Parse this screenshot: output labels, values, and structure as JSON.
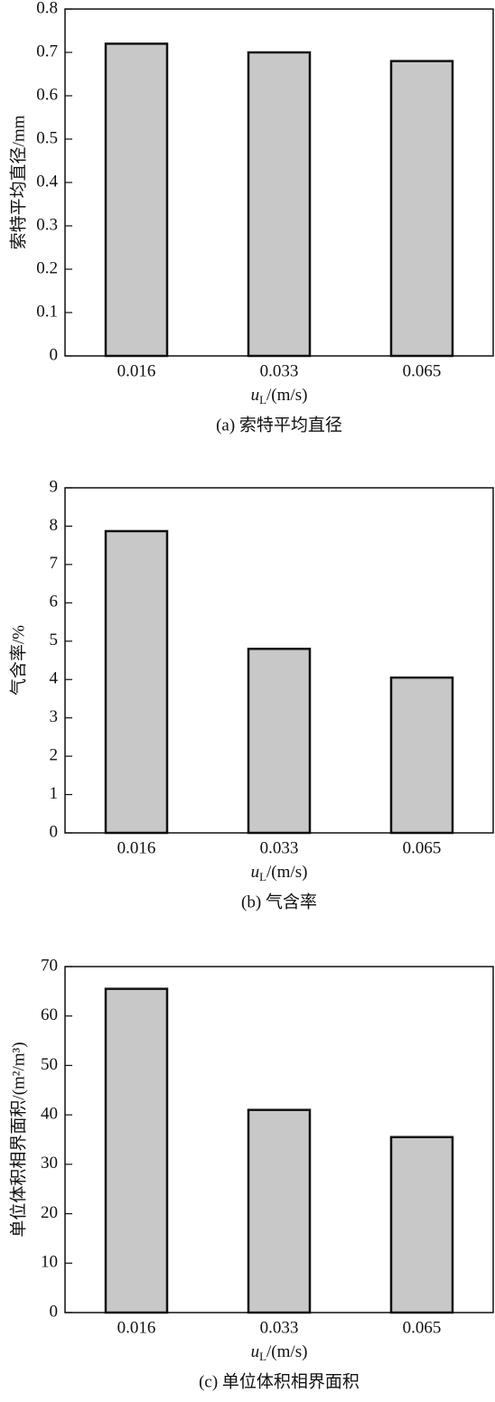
{
  "chart_data": [
    {
      "type": "bar",
      "caption": "(a) 索特平均直径",
      "y_label": "索特平均直径/mm",
      "x_label": {
        "symbol": "u",
        "subscript": "L",
        "unit": "/(m/s)"
      },
      "categories": [
        "0.016",
        "0.033",
        "0.065"
      ],
      "values": [
        0.72,
        0.7,
        0.68
      ],
      "color": "#c8c8c8",
      "ylim": [
        0,
        0.8
      ],
      "yticks": [
        0,
        0.1,
        0.2,
        0.3,
        0.4,
        0.5,
        0.6,
        0.7,
        0.8
      ]
    },
    {
      "type": "bar",
      "caption": "(b) 气含率",
      "y_label": "气含率/%",
      "x_label": {
        "symbol": "u",
        "subscript": "L",
        "unit": "/(m/s)"
      },
      "categories": [
        "0.016",
        "0.033",
        "0.065"
      ],
      "values": [
        7.87,
        4.8,
        4.05
      ],
      "color": "#c8c8c8",
      "ylim": [
        0,
        9
      ],
      "yticks": [
        0,
        1,
        2,
        3,
        4,
        5,
        6,
        7,
        8,
        9
      ]
    },
    {
      "type": "bar",
      "caption": "(c) 单位体积相界面积",
      "y_label": "单位体积相界面积/(m²/m³)",
      "x_label": {
        "symbol": "u",
        "subscript": "L",
        "unit": "/(m/s)"
      },
      "categories": [
        "0.016",
        "0.033",
        "0.065"
      ],
      "values": [
        65.5,
        41.0,
        35.5
      ],
      "color": "#c8c8c8",
      "ylim": [
        0,
        70
      ],
      "yticks": [
        0,
        10,
        20,
        30,
        40,
        50,
        60,
        70
      ]
    }
  ]
}
